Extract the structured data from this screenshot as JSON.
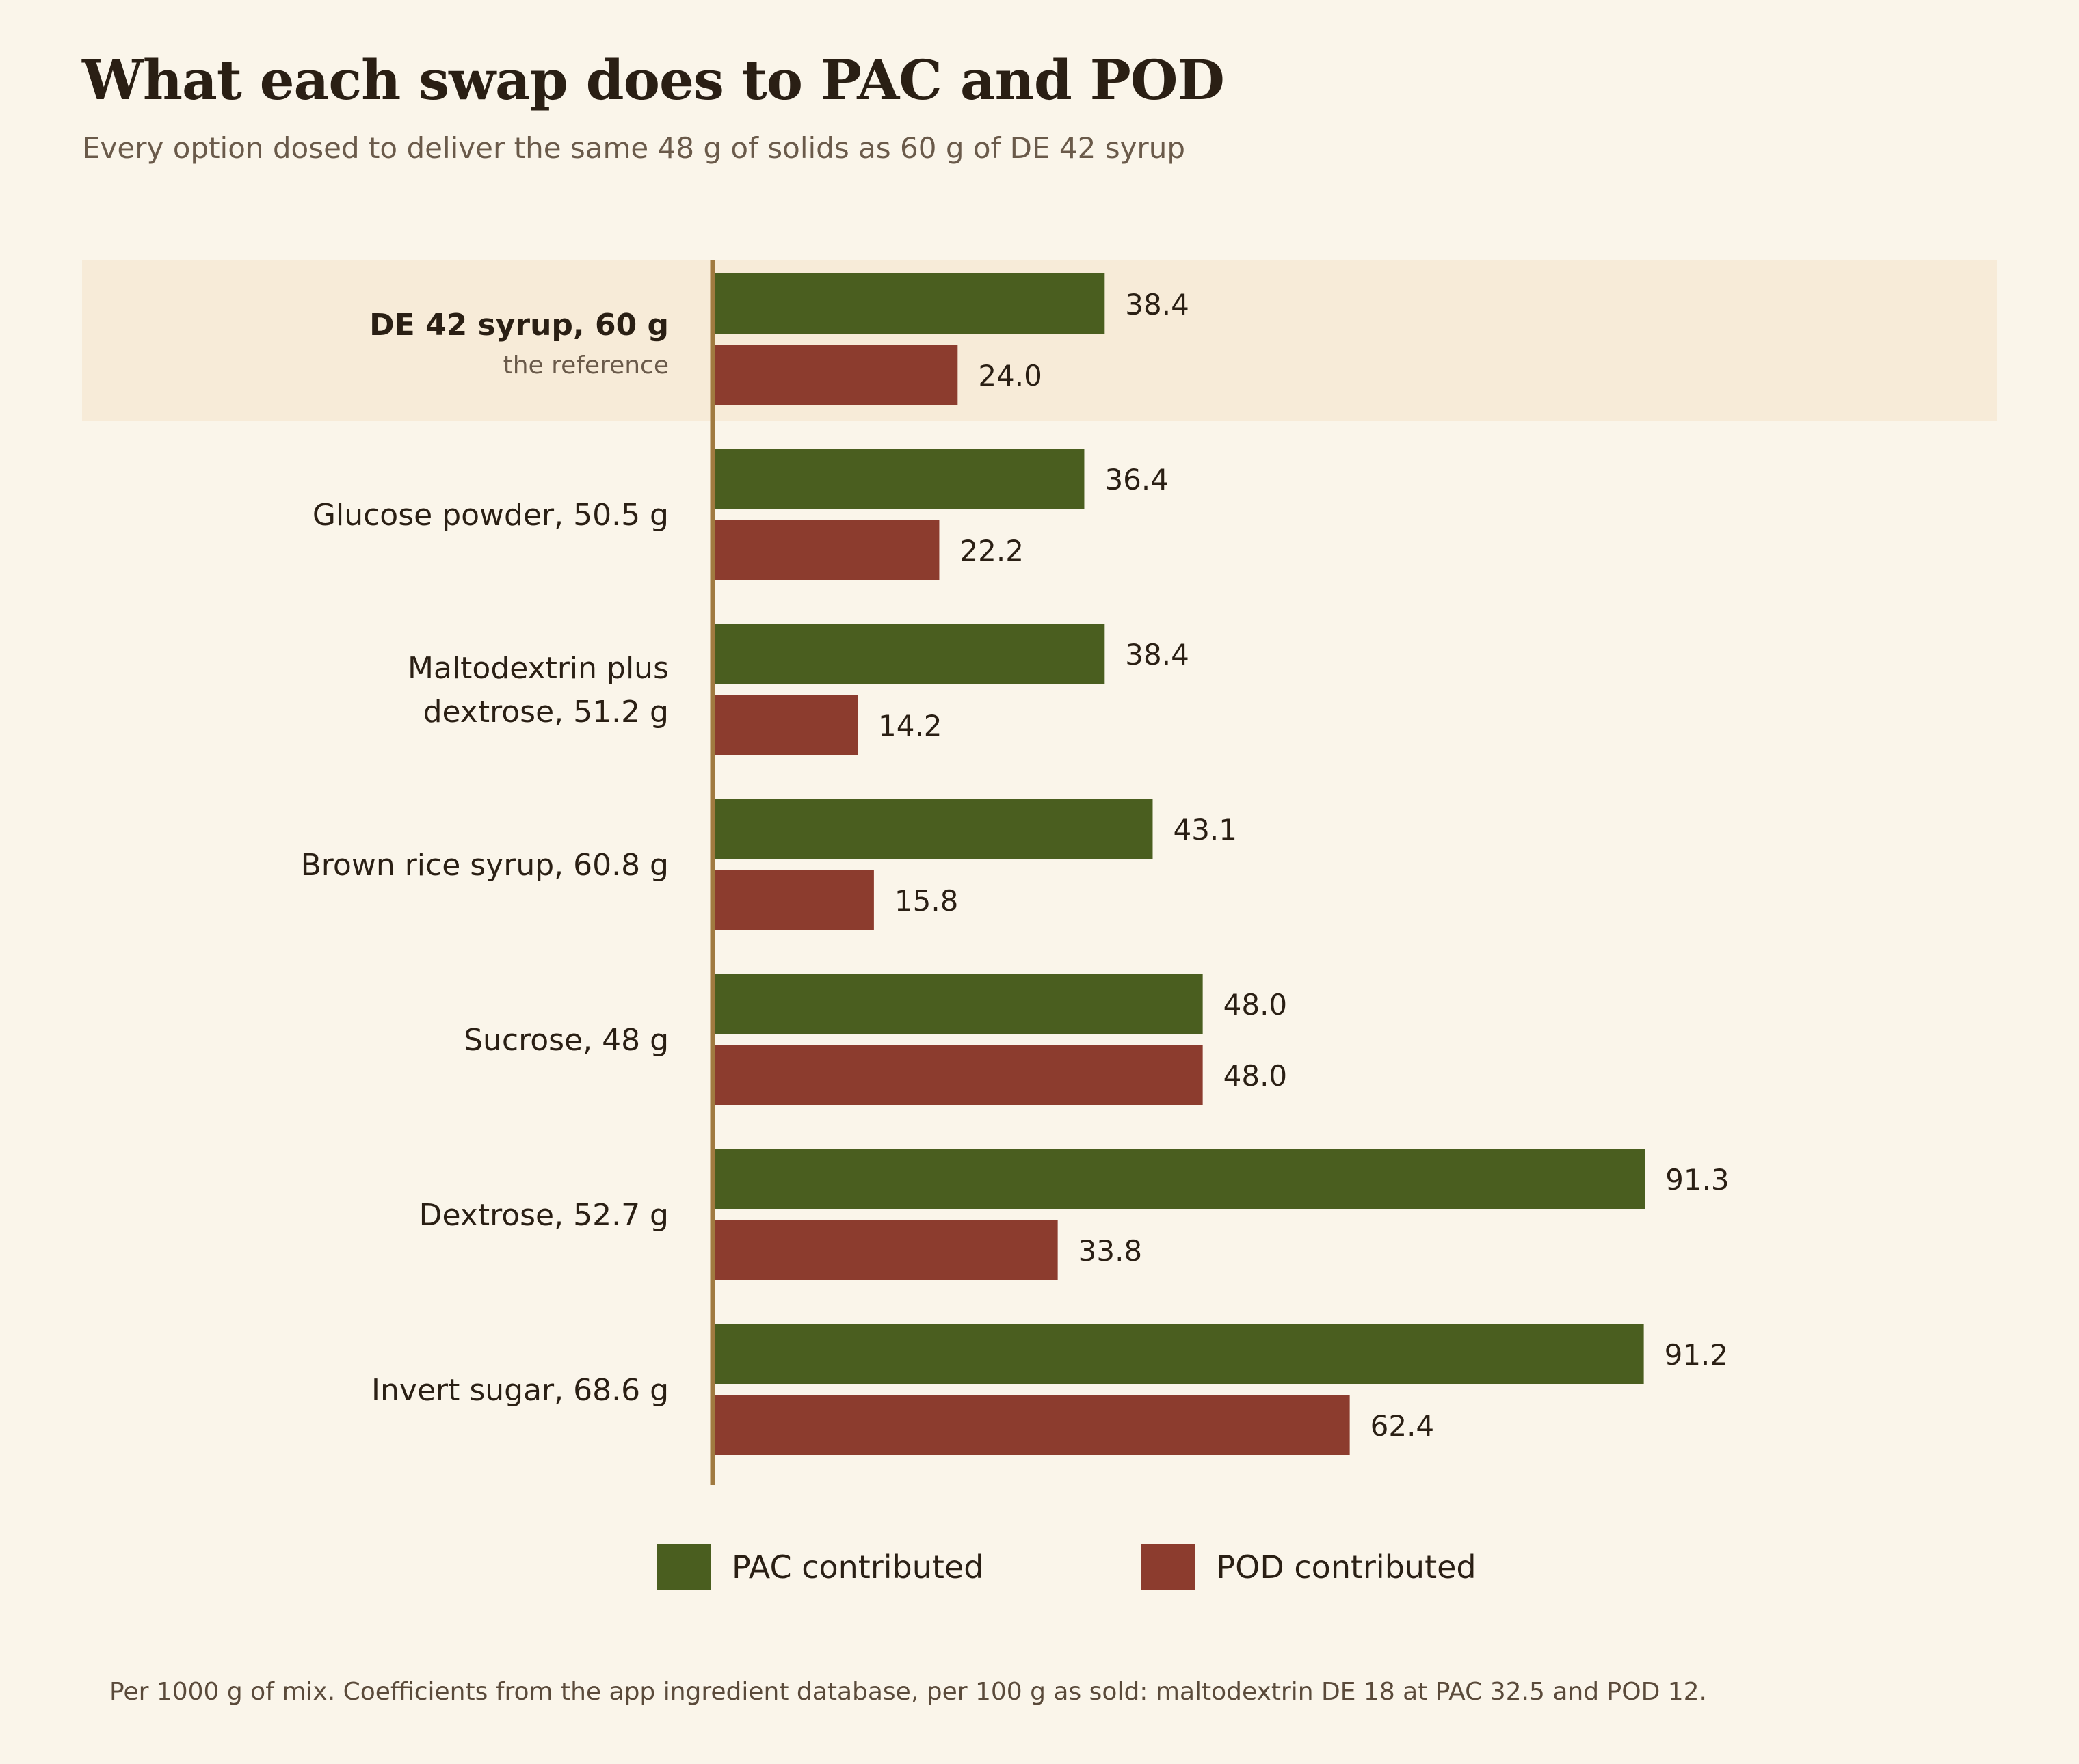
{
  "title": "What each swap does to PAC and POD",
  "subtitle": "Every option dosed to deliver the same 48 g of solids as 60 g of DE 42 syrup",
  "footnote": "Per 1000 g of mix. Coefficients from the app ingredient database, per 100 g as sold: maltodextrin DE 18 at PAC 32.5 and POD 12.",
  "colors": {
    "pac": "#4a5e1f",
    "pod": "#8c3c2e",
    "axis": "#a07a40",
    "highlight": "#f7ebd8",
    "background": "#faf5ea"
  },
  "chart_data": {
    "type": "bar",
    "orientation": "horizontal",
    "categories": [
      "DE 42 syrup, 60 g",
      "Glucose powder, 50.5 g",
      "Maltodextrin plus dextrose, 51.2 g",
      "Brown rice syrup, 60.8 g",
      "Sucrose, 48 g",
      "Dextrose, 52.7 g",
      "Invert sugar, 68.6 g"
    ],
    "category_lines": [
      [
        "DE 42 syrup, 60 g"
      ],
      [
        "Glucose powder, 50.5 g"
      ],
      [
        "Maltodextrin plus",
        "dextrose, 51.2 g"
      ],
      [
        "Brown rice syrup, 60.8 g"
      ],
      [
        "Sucrose, 48 g"
      ],
      [
        "Dextrose, 52.7 g"
      ],
      [
        "Invert sugar, 68.6 g"
      ]
    ],
    "highlight_category": "DE 42 syrup, 60 g",
    "highlight_note": "the reference",
    "series": [
      {
        "name": "PAC contributed",
        "values": [
          38.4,
          36.4,
          38.4,
          43.1,
          48.0,
          91.3,
          91.2
        ]
      },
      {
        "name": "POD contributed",
        "values": [
          24.0,
          22.2,
          14.2,
          15.8,
          48.0,
          33.8,
          62.4
        ]
      }
    ],
    "value_labels": {
      "pac": [
        "38.4",
        "36.4",
        "38.4",
        "43.1",
        "48.0",
        "91.3",
        "91.2"
      ],
      "pod": [
        "24.0",
        "22.2",
        "14.2",
        "15.8",
        "48.0",
        "33.8",
        "62.4"
      ]
    },
    "xlim": [
      0,
      100
    ],
    "grid": false,
    "legend_position": "bottom"
  },
  "legend": {
    "pac_label": "PAC contributed",
    "pod_label": "POD contributed"
  }
}
